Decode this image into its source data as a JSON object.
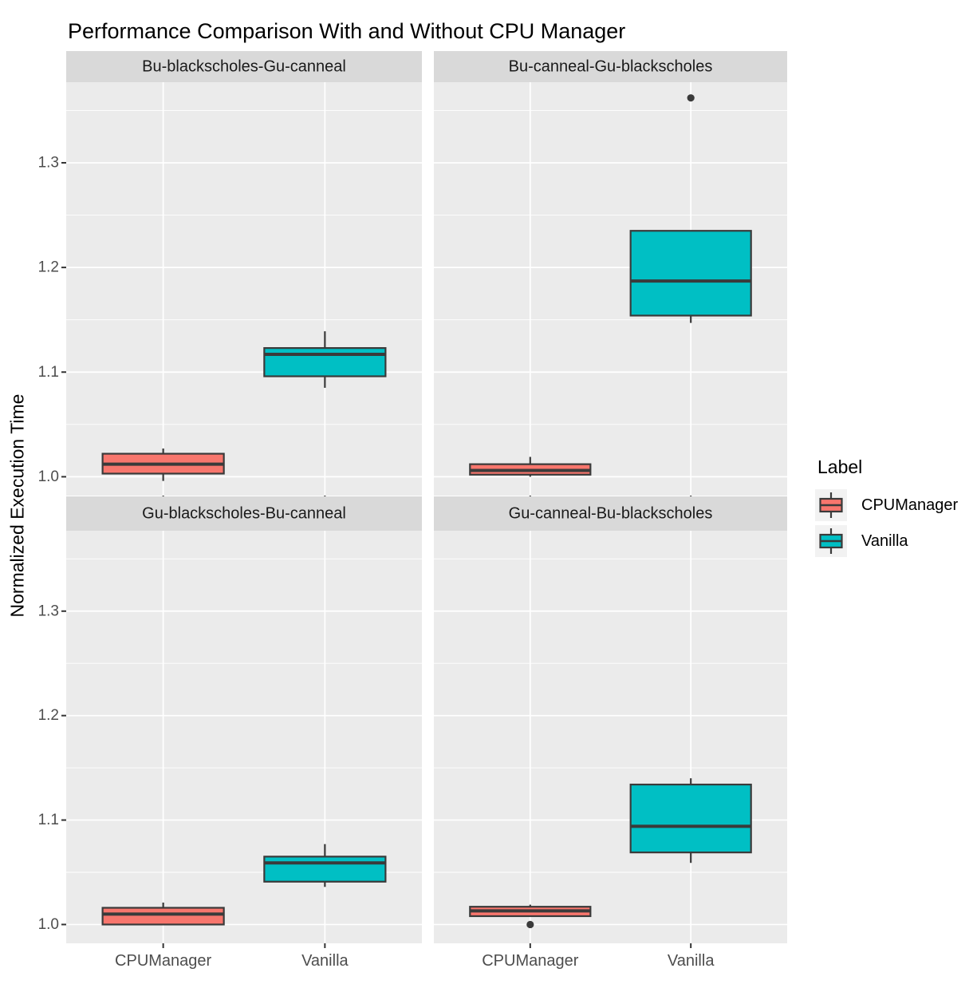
{
  "chart_data": {
    "type": "boxplot",
    "title": "Performance Comparison With and Without CPU Manager",
    "ylabel": "Normalized Execution Time",
    "xlabel": "",
    "categories": [
      "CPUManager",
      "Vanilla"
    ],
    "y_ticks": [
      1.0,
      1.1,
      1.2,
      1.3
    ],
    "y_minor_ticks": [
      1.05,
      1.15,
      1.25,
      1.35
    ],
    "ylim": [
      0.982,
      1.377
    ],
    "grid": "on",
    "legend_position": "right",
    "legend": {
      "title": "Label",
      "entries": [
        {
          "label": "CPUManager",
          "color": "#F8766D"
        },
        {
          "label": "Vanilla",
          "color": "#00BFC4"
        }
      ]
    },
    "facets": [
      {
        "label": "Bu-blackscholes-Gu-canneal",
        "boxes": [
          {
            "group": "CPUManager",
            "color": "#F8766D",
            "whisker_low": 0.996,
            "q1": 1.003,
            "median": 1.012,
            "q3": 1.022,
            "whisker_high": 1.027,
            "outliers": []
          },
          {
            "group": "Vanilla",
            "color": "#00BFC4",
            "whisker_low": 1.085,
            "q1": 1.096,
            "median": 1.117,
            "q3": 1.123,
            "whisker_high": 1.139,
            "outliers": []
          }
        ]
      },
      {
        "label": "Bu-canneal-Gu-blackscholes",
        "boxes": [
          {
            "group": "CPUManager",
            "color": "#F8766D",
            "whisker_low": 1.0,
            "q1": 1.002,
            "median": 1.006,
            "q3": 1.012,
            "whisker_high": 1.019,
            "outliers": []
          },
          {
            "group": "Vanilla",
            "color": "#00BFC4",
            "whisker_low": 1.147,
            "q1": 1.154,
            "median": 1.187,
            "q3": 1.235,
            "whisker_high": 1.235,
            "outliers": [
              1.362
            ]
          }
        ]
      },
      {
        "label": "Gu-blackscholes-Bu-canneal",
        "boxes": [
          {
            "group": "CPUManager",
            "color": "#F8766D",
            "whisker_low": 1.0,
            "q1": 1.0,
            "median": 1.01,
            "q3": 1.016,
            "whisker_high": 1.021,
            "outliers": []
          },
          {
            "group": "Vanilla",
            "color": "#00BFC4",
            "whisker_low": 1.036,
            "q1": 1.041,
            "median": 1.059,
            "q3": 1.065,
            "whisker_high": 1.077,
            "outliers": []
          }
        ]
      },
      {
        "label": "Gu-canneal-Bu-blackscholes",
        "boxes": [
          {
            "group": "CPUManager",
            "color": "#F8766D",
            "whisker_low": 1.008,
            "q1": 1.008,
            "median": 1.013,
            "q3": 1.017,
            "whisker_high": 1.019,
            "outliers": [
              1.0
            ]
          },
          {
            "group": "Vanilla",
            "color": "#00BFC4",
            "whisker_low": 1.059,
            "q1": 1.069,
            "median": 1.094,
            "q3": 1.134,
            "whisker_high": 1.14,
            "outliers": []
          }
        ]
      }
    ],
    "colors": {
      "panel_background": "#EBEBEB",
      "strip_background": "#D9D9D9",
      "strip_text": "#1A1A1A",
      "gridline": "#FFFFFF",
      "box_stroke": "#3A3A3A",
      "outlier": "#3A3A3A",
      "axis_text": "#4D4D4D",
      "axis_label_text": "#000000",
      "tick_mark": "#333333"
    }
  }
}
